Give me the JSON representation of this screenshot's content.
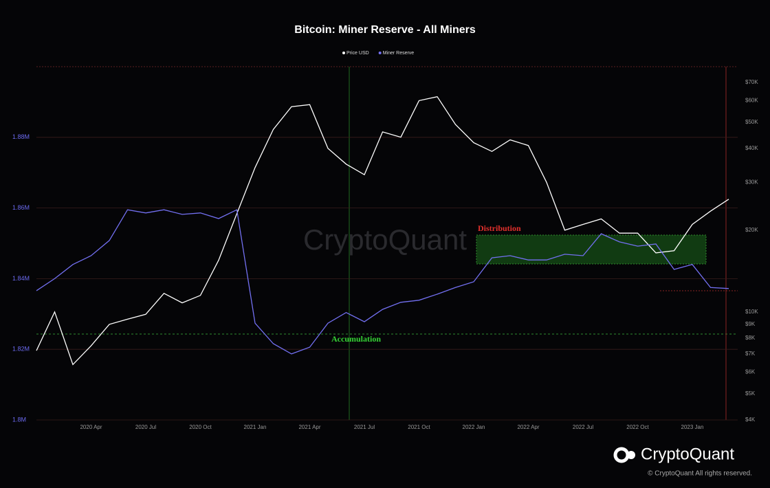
{
  "chart_data": {
    "type": "line",
    "title": "Bitcoin: Miner Reserve - All Miners",
    "watermark": "CryptoQuant",
    "brand": "CryptoQuant",
    "copyright": "© CryptoQuant All rights reserved.",
    "x": [
      "2020-01",
      "2020-02",
      "2020-03",
      "2020-04",
      "2020-05",
      "2020-06",
      "2020-07",
      "2020-08",
      "2020-09",
      "2020-10",
      "2020-11",
      "2020-12",
      "2021-01",
      "2021-02",
      "2021-03",
      "2021-04",
      "2021-05",
      "2021-06",
      "2021-07",
      "2021-08",
      "2021-09",
      "2021-10",
      "2021-11",
      "2021-12",
      "2022-01",
      "2022-02",
      "2022-03",
      "2022-04",
      "2022-05",
      "2022-06",
      "2022-07",
      "2022-08",
      "2022-09",
      "2022-10",
      "2022-11",
      "2022-12",
      "2023-01",
      "2023-02",
      "2023-03"
    ],
    "xlim": [
      "2020-01",
      "2023-03"
    ],
    "xticks": [
      {
        "value": "2020-04",
        "label": "2020 Apr"
      },
      {
        "value": "2020-07",
        "label": "2020 Jul"
      },
      {
        "value": "2020-10",
        "label": "2020 Oct"
      },
      {
        "value": "2021-01",
        "label": "2021 Jan"
      },
      {
        "value": "2021-04",
        "label": "2021 Apr"
      },
      {
        "value": "2021-07",
        "label": "2021 Jul"
      },
      {
        "value": "2021-10",
        "label": "2021 Oct"
      },
      {
        "value": "2022-01",
        "label": "2022 Jan"
      },
      {
        "value": "2022-04",
        "label": "2022 Apr"
      },
      {
        "value": "2022-07",
        "label": "2022 Jul"
      },
      {
        "value": "2022-10",
        "label": "2022 Oct"
      },
      {
        "value": "2023-01",
        "label": "2023 Jan"
      }
    ],
    "ylim": [
      1800000,
      1900000
    ],
    "yticks": [
      {
        "value": 1800000,
        "label": "1.8M"
      },
      {
        "value": 1820000,
        "label": "1.82M"
      },
      {
        "value": 1840000,
        "label": "1.84M"
      },
      {
        "value": 1860000,
        "label": "1.86M"
      },
      {
        "value": 1880000,
        "label": "1.88M"
      }
    ],
    "y2lim": [
      4000,
      80000
    ],
    "y2_log": true,
    "y2ticks": [
      {
        "value": 4000,
        "label": "$4K"
      },
      {
        "value": 5000,
        "label": "$5K"
      },
      {
        "value": 6000,
        "label": "$6K"
      },
      {
        "value": 7000,
        "label": "$7K"
      },
      {
        "value": 8000,
        "label": "$8K"
      },
      {
        "value": 9000,
        "label": "$9K"
      },
      {
        "value": 10000,
        "label": "$10K"
      },
      {
        "value": 20000,
        "label": "$20K"
      },
      {
        "value": 30000,
        "label": "$30K"
      },
      {
        "value": 40000,
        "label": "$40K"
      },
      {
        "value": 50000,
        "label": "$50K"
      },
      {
        "value": 60000,
        "label": "$60K"
      },
      {
        "value": 70000,
        "label": "$70K"
      }
    ],
    "grid": true,
    "series": [
      {
        "name": "Price USD",
        "color": "#ffffff",
        "axis": "y2",
        "values": [
          7200,
          10000,
          6400,
          7500,
          9000,
          9400,
          9800,
          11700,
          10800,
          11500,
          15500,
          23000,
          34000,
          47000,
          57000,
          58000,
          40000,
          35000,
          32000,
          46000,
          44000,
          60000,
          62000,
          49000,
          42000,
          39000,
          43000,
          41000,
          30000,
          20000,
          21000,
          22000,
          19500,
          19500,
          16500,
          16800,
          21000,
          23500,
          26000
        ]
      },
      {
        "name": "Miner Reserve",
        "color": "#7370f2",
        "values": [
          1836600,
          1840000,
          1844000,
          1846500,
          1850800,
          1859500,
          1858600,
          1859500,
          1858200,
          1858600,
          1857000,
          1859500,
          1827400,
          1821600,
          1818700,
          1820600,
          1827400,
          1830400,
          1827800,
          1831300,
          1833300,
          1833900,
          1835600,
          1837500,
          1839100,
          1845900,
          1846500,
          1845300,
          1845300,
          1846900,
          1846500,
          1852700,
          1850400,
          1849200,
          1849800,
          1842600,
          1844000,
          1837500,
          1837200
        ]
      }
    ],
    "annotations": [
      {
        "text": "Distribution",
        "color": "#e2302c"
      },
      {
        "text": "Accumulation",
        "color": "#35d335"
      }
    ]
  }
}
